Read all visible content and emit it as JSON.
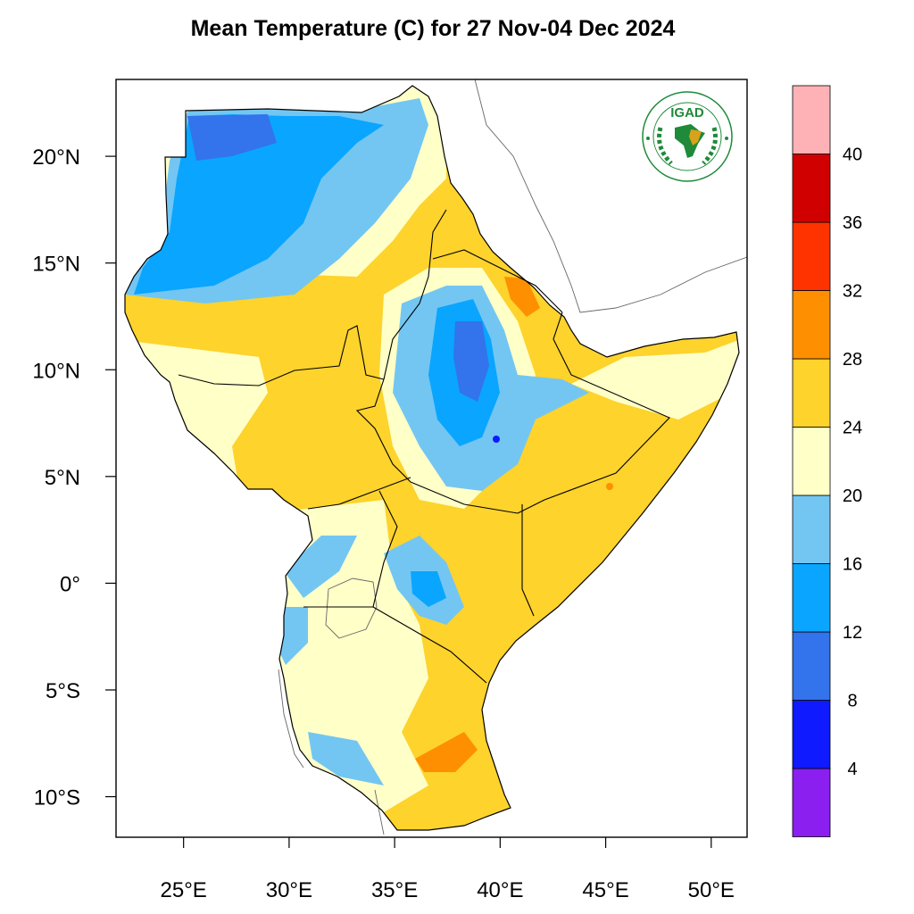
{
  "title": "Mean Temperature (C) for 27 Nov-04 Dec 2024",
  "logo": {
    "text": "IGAD",
    "colors": {
      "green": "#1e8a3a",
      "gold": "#d9a21b"
    }
  },
  "map": {
    "lon_range": [
      21.8,
      51.7
    ],
    "lat_range": [
      -11.9,
      23.6
    ],
    "lon_ticks": [
      {
        "value": 25,
        "label": "25°E"
      },
      {
        "value": 30,
        "label": "30°E"
      },
      {
        "value": 35,
        "label": "35°E"
      },
      {
        "value": 40,
        "label": "40°E"
      },
      {
        "value": 45,
        "label": "45°E"
      },
      {
        "value": 50,
        "label": "50°E"
      }
    ],
    "lat_ticks": [
      {
        "value": 20,
        "label": "20°N"
      },
      {
        "value": 15,
        "label": "15°N"
      },
      {
        "value": 10,
        "label": "10°N"
      },
      {
        "value": 5,
        "label": "5°N"
      },
      {
        "value": 0,
        "label": "0°"
      },
      {
        "value": -5,
        "label": "5°S"
      },
      {
        "value": -10,
        "label": "10°S"
      }
    ]
  },
  "colorbar": {
    "bins": [
      {
        "color": "#8a1ff0"
      },
      {
        "color": "#0f1aff"
      },
      {
        "color": "#3373eb"
      },
      {
        "color": "#0aa5ff"
      },
      {
        "color": "#73c6f2"
      },
      {
        "color": "#ffffc8"
      },
      {
        "color": "#fdd32c"
      },
      {
        "color": "#fe8f00"
      },
      {
        "color": "#ff3300"
      },
      {
        "color": "#d10000"
      },
      {
        "color": "#ffb2b6"
      }
    ],
    "labels": [
      "4",
      "8",
      "12",
      "16",
      "20",
      "24",
      "28",
      "32",
      "36",
      "40"
    ]
  }
}
